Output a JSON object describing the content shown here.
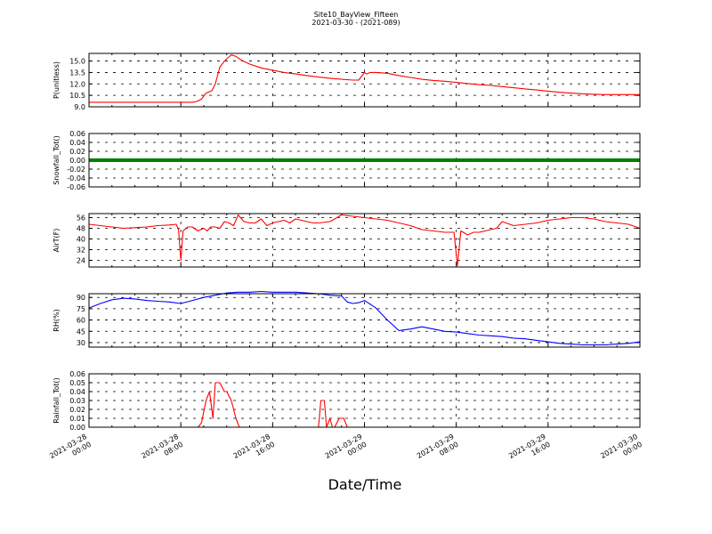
{
  "chart_data": {
    "title": "Site10_BayView_Fifteen",
    "subtitle": "2021-03-30 - (2021-089)",
    "xlabel": "Date/Time",
    "x_ticks": [
      {
        "line1": "2021-03-28",
        "line2": "00:00",
        "hours": 0
      },
      {
        "line1": "2021-03-28",
        "line2": "08:00",
        "hours": 8
      },
      {
        "line1": "2021-03-28",
        "line2": "16:00",
        "hours": 16
      },
      {
        "line1": "2021-03-29",
        "line2": "00:00",
        "hours": 24
      },
      {
        "line1": "2021-03-29",
        "line2": "08:00",
        "hours": 32
      },
      {
        "line1": "2021-03-29",
        "line2": "16:00",
        "hours": 40
      },
      {
        "line1": "2021-03-30",
        "line2": "00:00",
        "hours": 48
      }
    ],
    "panels": [
      {
        "type": "line",
        "ylabel": "P(unitless)",
        "color": "#ff0000",
        "ylim": [
          9.0,
          16.0
        ],
        "yticks": [
          "9.0",
          "10.5",
          "12.0",
          "13.5",
          "15.0"
        ],
        "ytick_values": [
          9.0,
          10.5,
          12.0,
          13.5,
          15.0
        ],
        "x": [
          0,
          4,
          8,
          9,
          9.4,
          9.8,
          10.2,
          10.7,
          11.0,
          11.4,
          11.8,
          12.0,
          12.4,
          12.8,
          13.3,
          14,
          15,
          16,
          17,
          18,
          19,
          20,
          21,
          22,
          23,
          23.5,
          24,
          24.2,
          24.5,
          25,
          26,
          27,
          28,
          29,
          30,
          31,
          32,
          33,
          34,
          35,
          36,
          37,
          38,
          39,
          40,
          41,
          42,
          43,
          44,
          45,
          46,
          47,
          48
        ],
        "values": [
          9.6,
          9.6,
          9.6,
          9.6,
          9.7,
          10.0,
          10.8,
          11.1,
          12.0,
          14.2,
          15.0,
          15.3,
          15.8,
          15.6,
          15.1,
          14.6,
          14.1,
          13.8,
          13.5,
          13.3,
          13.1,
          12.9,
          12.75,
          12.6,
          12.5,
          12.5,
          13.5,
          13.3,
          13.5,
          13.5,
          13.4,
          13.1,
          12.85,
          12.6,
          12.45,
          12.35,
          12.2,
          12.05,
          11.9,
          11.8,
          11.65,
          11.5,
          11.35,
          11.2,
          11.05,
          10.9,
          10.8,
          10.7,
          10.65,
          10.6,
          10.6,
          10.6,
          10.6
        ]
      },
      {
        "type": "line",
        "ylabel": "Snowfall_Tot()",
        "color": "#008000",
        "ylim": [
          -0.06,
          0.06
        ],
        "yticks": [
          "-0.06",
          "-0.04",
          "-0.02",
          "0.00",
          "0.02",
          "0.04",
          "0.06"
        ],
        "ytick_values": [
          -0.06,
          -0.04,
          -0.02,
          0.0,
          0.02,
          0.04,
          0.06
        ],
        "x": [
          0,
          48
        ],
        "values": [
          0.0,
          0.0
        ]
      },
      {
        "type": "line",
        "ylabel": "AirT(F)",
        "color": "#ff0000",
        "ylim": [
          19,
          59
        ],
        "yticks": [
          "24",
          "32",
          "40",
          "48",
          "56"
        ],
        "ytick_values": [
          24,
          32,
          40,
          48,
          56
        ],
        "x": [
          0,
          1,
          2,
          3,
          4,
          5,
          6,
          7,
          7.6,
          7.8,
          8.0,
          8.2,
          8.6,
          9,
          9.5,
          10,
          10.3,
          10.6,
          11,
          11.4,
          11.8,
          12.2,
          12.6,
          13,
          13.5,
          14,
          14.5,
          15,
          15.5,
          16,
          16.5,
          17,
          17.5,
          18,
          18.5,
          19,
          19.5,
          20,
          21,
          22,
          23,
          24,
          25,
          26,
          27,
          28,
          29,
          30,
          31,
          31.5,
          31.8,
          32.1,
          32.4,
          33,
          33.5,
          34,
          35,
          35.5,
          36,
          37,
          38,
          39,
          40,
          41,
          42,
          43,
          44,
          45,
          46,
          47,
          48
        ],
        "values": [
          51,
          50,
          49,
          48,
          48.5,
          49,
          50,
          50.5,
          51,
          47,
          24,
          46,
          49,
          49,
          46,
          48,
          46,
          49,
          49,
          48,
          53,
          52,
          50,
          58,
          53,
          52,
          52,
          55,
          50,
          52,
          53,
          54,
          52,
          55,
          54,
          53,
          52,
          52,
          53,
          58,
          57,
          56,
          55,
          54,
          52,
          50,
          47,
          46,
          45,
          45,
          45,
          20,
          46,
          43,
          45,
          45,
          47,
          48,
          53,
          50,
          51,
          52,
          54,
          55,
          56,
          56,
          55,
          53,
          52,
          51,
          48
        ]
      },
      {
        "type": "line",
        "ylabel": "RH(%)",
        "color": "#0000ff",
        "ylim": [
          24,
          95
        ],
        "yticks": [
          "30",
          "45",
          "60",
          "75",
          "90"
        ],
        "ytick_values": [
          30,
          45,
          60,
          75,
          90
        ],
        "x": [
          0,
          1,
          2,
          3,
          4,
          5,
          6,
          7,
          8,
          9,
          10,
          11,
          12,
          13,
          14,
          15,
          16,
          17,
          18,
          19,
          20,
          21,
          22,
          22.5,
          23,
          23.5,
          24,
          25,
          26,
          27,
          28,
          29,
          30,
          31,
          32,
          33,
          34,
          35,
          36,
          37,
          38,
          39,
          40,
          41,
          42,
          43,
          44,
          45,
          46,
          47,
          48
        ],
        "values": [
          76,
          82,
          87,
          89,
          88,
          86,
          85,
          84,
          82,
          86,
          90,
          93,
          96,
          97,
          97,
          98,
          97,
          97,
          97,
          96,
          95,
          93,
          92,
          84,
          82,
          83,
          86,
          76,
          60,
          46,
          48,
          51,
          48,
          45,
          44,
          42,
          40,
          39,
          38,
          36,
          35,
          33,
          31,
          29,
          28,
          27,
          27,
          27,
          28,
          29,
          31
        ]
      },
      {
        "type": "line",
        "ylabel": "Rainfall_Tot()",
        "color": "#ff0000",
        "ylim": [
          0.0,
          0.06
        ],
        "yticks": [
          "0.00",
          "0.01",
          "0.02",
          "0.03",
          "0.04",
          "0.05",
          "0.06"
        ],
        "ytick_values": [
          0.0,
          0.01,
          0.02,
          0.03,
          0.04,
          0.05,
          0.06
        ],
        "x": [
          0,
          9.5,
          9.8,
          10.2,
          10.5,
          10.8,
          11.0,
          11.4,
          11.8,
          12.0,
          12.4,
          12.8,
          13.1,
          13.5,
          20,
          20.2,
          20.5,
          20.7,
          21.0,
          21.2,
          21.4,
          21.8,
          22.0,
          22.2,
          22.5,
          48
        ],
        "values": [
          0.0,
          0.0,
          0.005,
          0.03,
          0.04,
          0.01,
          0.05,
          0.05,
          0.04,
          0.04,
          0.03,
          0.01,
          0.0,
          0.0,
          0.0,
          0.03,
          0.03,
          0.0,
          0.01,
          0.0,
          0.0,
          0.01,
          0.01,
          0.01,
          0.0,
          0.0
        ]
      }
    ]
  }
}
